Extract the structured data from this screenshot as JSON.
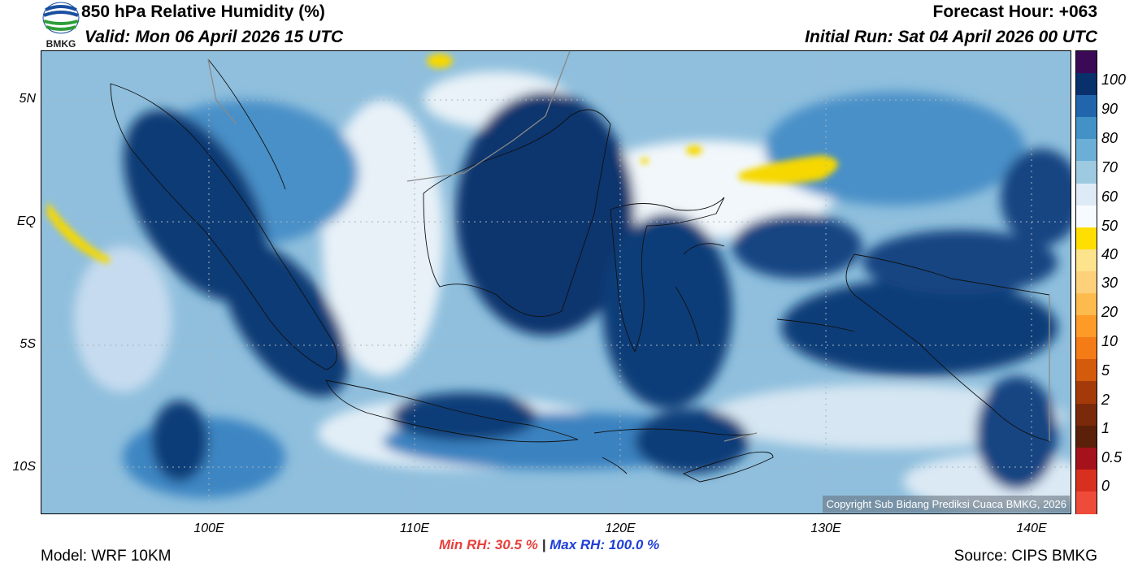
{
  "header": {
    "title": "850 hPa Relative Humidity (%)",
    "valid": "Valid: Mon 06 April 2026 15 UTC",
    "forecast_hour": "Forecast Hour: +063",
    "initial_run": "Initial Run: Sat 04 April 2026 00 UTC"
  },
  "logo": {
    "text": "BMKG",
    "icon": "bmkg-logo-icon"
  },
  "map": {
    "lon_ticks": [
      "100E",
      "110E",
      "120E",
      "130E",
      "140E"
    ],
    "lat_ticks": [
      "5N",
      "EQ",
      "5S",
      "10S"
    ],
    "gridlines": true,
    "copyright": "Copyright Sub Bidang Prediksi Cuaca BMKG, 2026"
  },
  "colorbar": {
    "labels": [
      "100",
      "90",
      "80",
      "70",
      "60",
      "50",
      "40",
      "30",
      "20",
      "10",
      "5",
      "2",
      "1",
      "0.5",
      "0"
    ],
    "colors": [
      "#3b0a57",
      "#08306b",
      "#2166ac",
      "#4292c6",
      "#6baed6",
      "#9ecae1",
      "#deebf7",
      "#f7fbff",
      "#ffde00",
      "#fde38c",
      "#fdd07a",
      "#fdbb4e",
      "#fd9a28",
      "#f47b16",
      "#d45a0c",
      "#a43a0a",
      "#7a2a0a",
      "#5a200a",
      "#a6121c",
      "#d7301f",
      "#ee4b3b"
    ]
  },
  "stats": {
    "min_rh": "Min RH:  30.5 %",
    "separator": "|",
    "max_rh": "Max RH: 100.0 %"
  },
  "footer": {
    "model": "Model: WRF 10KM",
    "source": "Source: CIPS BMKG"
  }
}
